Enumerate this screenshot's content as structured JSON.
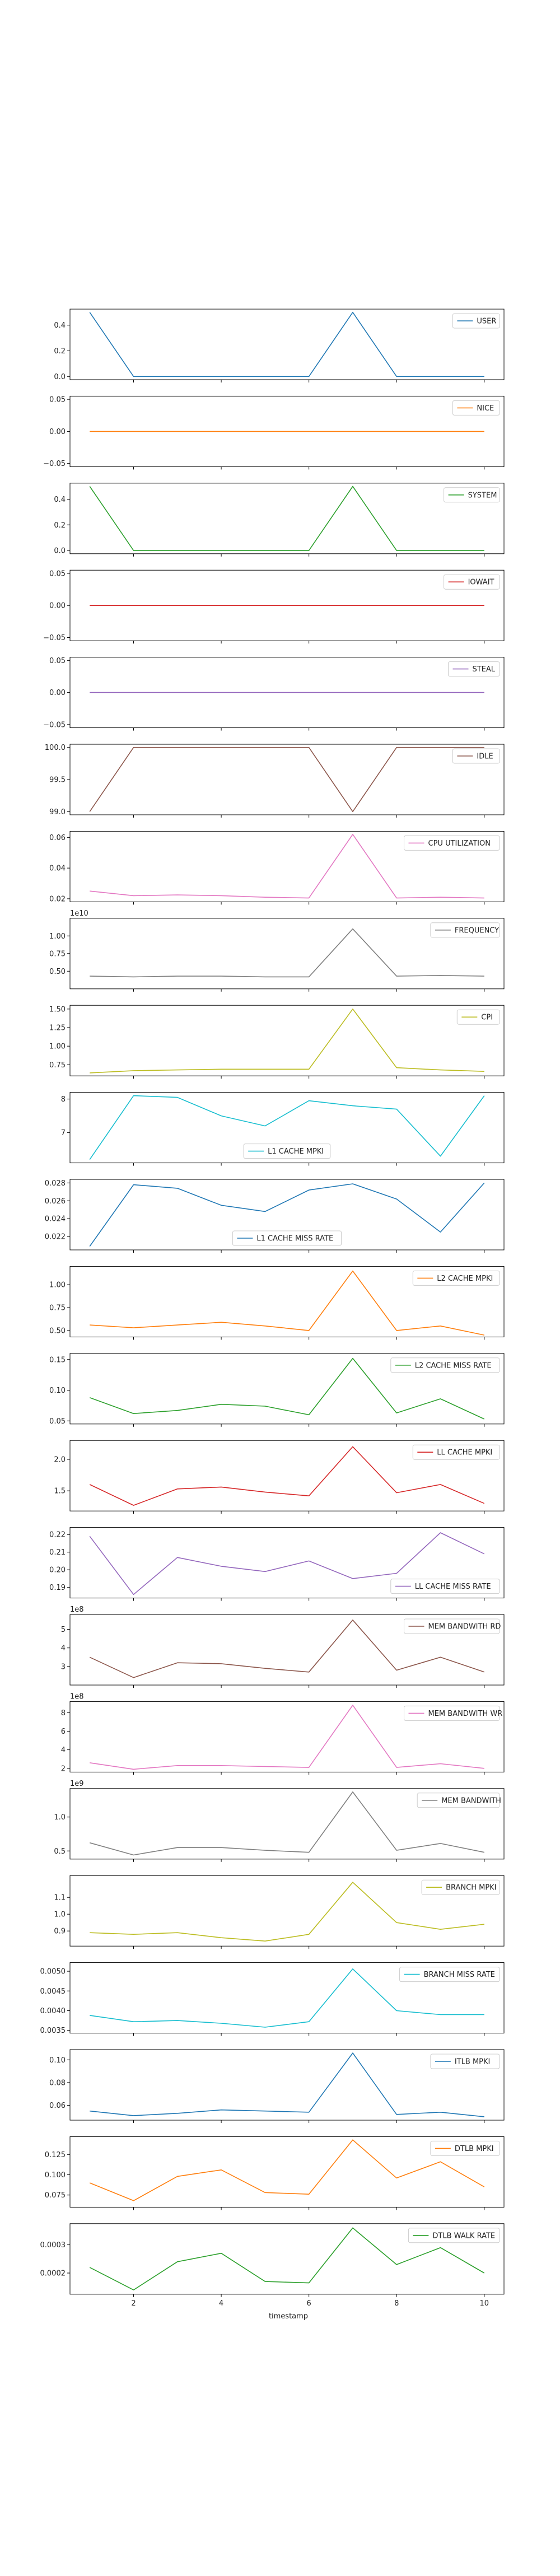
{
  "chart_data": {
    "type": "line",
    "layout": "stacked-subplots-shared-x",
    "xlabel": "timestamp",
    "x": [
      1,
      2,
      3,
      4,
      5,
      6,
      7,
      8,
      9,
      10
    ],
    "xlim": [
      0.55,
      10.45
    ],
    "xticks": [
      2,
      4,
      6,
      8,
      10
    ],
    "series": [
      {
        "name": "USER",
        "color": "#1f77b4",
        "legend": "upper right",
        "ylim": [
          -0.025,
          0.525
        ],
        "yticks": [
          0.0,
          0.2,
          0.4
        ],
        "tick_labels": [
          "0.0",
          "0.2",
          "0.4"
        ],
        "values": [
          0.5,
          0,
          0,
          0,
          0,
          0,
          0.5,
          0,
          0,
          0
        ]
      },
      {
        "name": "NICE",
        "color": "#ff7f0e",
        "legend": "upper right",
        "ylim": [
          -0.055,
          0.055
        ],
        "yticks": [
          -0.05,
          0.0,
          0.05
        ],
        "tick_labels": [
          "−0.05",
          "0.00",
          "0.05"
        ],
        "values": [
          0,
          0,
          0,
          0,
          0,
          0,
          0,
          0,
          0,
          0
        ]
      },
      {
        "name": "SYSTEM",
        "color": "#2ca02c",
        "legend": "upper right",
        "ylim": [
          -0.025,
          0.525
        ],
        "yticks": [
          0.0,
          0.2,
          0.4
        ],
        "tick_labels": [
          "0.0",
          "0.2",
          "0.4"
        ],
        "values": [
          0.5,
          0,
          0,
          0,
          0,
          0,
          0.5,
          0,
          0,
          0
        ]
      },
      {
        "name": "IOWAIT",
        "color": "#d62728",
        "legend": "upper right",
        "ylim": [
          -0.055,
          0.055
        ],
        "yticks": [
          -0.05,
          0.0,
          0.05
        ],
        "tick_labels": [
          "−0.05",
          "0.00",
          "0.05"
        ],
        "values": [
          0,
          0,
          0,
          0,
          0,
          0,
          0,
          0,
          0,
          0
        ]
      },
      {
        "name": "STEAL",
        "color": "#9467bd",
        "legend": "upper right",
        "ylim": [
          -0.055,
          0.055
        ],
        "yticks": [
          -0.05,
          0.0,
          0.05
        ],
        "tick_labels": [
          "−0.05",
          "0.00",
          "0.05"
        ],
        "values": [
          0,
          0,
          0,
          0,
          0,
          0,
          0,
          0,
          0,
          0
        ]
      },
      {
        "name": "IDLE",
        "color": "#8c564b",
        "legend": "upper right",
        "ylim": [
          98.95,
          100.05
        ],
        "yticks": [
          99.0,
          99.5,
          100.0
        ],
        "tick_labels": [
          "99.0",
          "99.5",
          "100.0"
        ],
        "values": [
          99.0,
          100,
          100,
          100,
          100,
          100,
          99.0,
          100,
          100,
          100
        ]
      },
      {
        "name": "CPU UTILIZATION",
        "color": "#e377c2",
        "legend": "upper right",
        "ylim": [
          0.018,
          0.064
        ],
        "yticks": [
          0.02,
          0.04,
          0.06
        ],
        "tick_labels": [
          "0.02",
          "0.04",
          "0.06"
        ],
        "values": [
          0.025,
          0.022,
          0.0225,
          0.022,
          0.021,
          0.0205,
          0.062,
          0.0205,
          0.021,
          0.0205
        ]
      },
      {
        "name": "FREQUENCY",
        "color": "#7f7f7f",
        "legend": "upper right",
        "offset_text": "1e10",
        "ylim": [
          0.25,
          1.25
        ],
        "yticks": [
          0.5,
          0.75,
          1.0
        ],
        "tick_labels": [
          "0.50",
          "0.75",
          "1.00"
        ],
        "values": [
          0.43,
          0.42,
          0.43,
          0.43,
          0.42,
          0.42,
          1.1,
          0.43,
          0.44,
          0.43
        ]
      },
      {
        "name": "CPI",
        "color": "#bcbd22",
        "legend": "upper right",
        "ylim": [
          0.6,
          1.55
        ],
        "yticks": [
          0.75,
          1.0,
          1.25,
          1.5
        ],
        "tick_labels": [
          "0.75",
          "1.00",
          "1.25",
          "1.50"
        ],
        "values": [
          0.64,
          0.67,
          0.68,
          0.69,
          0.69,
          0.69,
          1.5,
          0.71,
          0.68,
          0.66
        ]
      },
      {
        "name": "L1 CACHE MPKI",
        "color": "#17becf",
        "legend": "lower center",
        "ylim": [
          6.1,
          8.2
        ],
        "yticks": [
          7,
          8
        ],
        "tick_labels": [
          "7",
          "8"
        ],
        "values": [
          6.2,
          8.1,
          8.05,
          7.5,
          7.2,
          7.95,
          7.8,
          7.7,
          6.3,
          8.1
        ]
      },
      {
        "name": "L1 CACHE MISS RATE",
        "color": "#1f77b4",
        "legend": "lower center",
        "ylim": [
          0.0205,
          0.0284
        ],
        "yticks": [
          0.022,
          0.024,
          0.026,
          0.028
        ],
        "tick_labels": [
          "0.022",
          "0.024",
          "0.026",
          "0.028"
        ],
        "values": [
          0.0209,
          0.0278,
          0.0274,
          0.0255,
          0.0248,
          0.0272,
          0.0279,
          0.0262,
          0.0225,
          0.028
        ]
      },
      {
        "name": "L2 CACHE MPKI",
        "color": "#ff7f0e",
        "legend": "upper right",
        "ylim": [
          0.43,
          1.2
        ],
        "yticks": [
          0.5,
          0.75,
          1.0
        ],
        "tick_labels": [
          "0.50",
          "0.75",
          "1.00"
        ],
        "values": [
          0.56,
          0.53,
          0.56,
          0.59,
          0.55,
          0.5,
          1.15,
          0.5,
          0.55,
          0.45
        ]
      },
      {
        "name": "L2 CACHE MISS RATE",
        "color": "#2ca02c",
        "legend": "upper right",
        "ylim": [
          0.045,
          0.16
        ],
        "yticks": [
          0.05,
          0.1,
          0.15
        ],
        "tick_labels": [
          "0.05",
          "0.10",
          "0.15"
        ],
        "values": [
          0.088,
          0.062,
          0.067,
          0.077,
          0.074,
          0.06,
          0.152,
          0.063,
          0.086,
          0.053
        ]
      },
      {
        "name": "LL CACHE MPKI",
        "color": "#d62728",
        "legend": "upper right",
        "ylim": [
          1.18,
          2.3
        ],
        "yticks": [
          1.5,
          2.0
        ],
        "tick_labels": [
          "1.5",
          "2.0"
        ],
        "values": [
          1.6,
          1.27,
          1.53,
          1.56,
          1.48,
          1.42,
          2.2,
          1.47,
          1.6,
          1.3
        ]
      },
      {
        "name": "LL CACHE MISS RATE",
        "color": "#9467bd",
        "legend": "lower right",
        "ylim": [
          0.184,
          0.224
        ],
        "yticks": [
          0.19,
          0.2,
          0.21,
          0.22
        ],
        "tick_labels": [
          "0.19",
          "0.20",
          "0.21",
          "0.22"
        ],
        "values": [
          0.219,
          0.186,
          0.207,
          0.202,
          0.199,
          0.205,
          0.195,
          0.198,
          0.221,
          0.209
        ]
      },
      {
        "name": "MEM BANDWITH RD",
        "color": "#8c564b",
        "legend": "upper right",
        "offset_text": "1e8",
        "ylim": [
          2.0,
          5.8
        ],
        "yticks": [
          3,
          4,
          5
        ],
        "tick_labels": [
          "3",
          "4",
          "5"
        ],
        "values": [
          3.5,
          2.4,
          3.2,
          3.15,
          2.9,
          2.7,
          5.5,
          2.8,
          3.5,
          2.7
        ]
      },
      {
        "name": "MEM BANDWITH WR",
        "color": "#e377c2",
        "legend": "upper right",
        "offset_text": "1e8",
        "ylim": [
          1.6,
          9.2
        ],
        "yticks": [
          2,
          4,
          6,
          8
        ],
        "tick_labels": [
          "2",
          "4",
          "6",
          "8"
        ],
        "values": [
          2.6,
          1.9,
          2.3,
          2.3,
          2.2,
          2.1,
          8.8,
          2.1,
          2.5,
          2.0
        ]
      },
      {
        "name": "MEM BANDWITH",
        "color": "#7f7f7f",
        "legend": "upper right",
        "offset_text": "1e9",
        "ylim": [
          0.38,
          1.42
        ],
        "yticks": [
          0.5,
          1.0
        ],
        "tick_labels": [
          "0.5",
          "1.0"
        ],
        "values": [
          0.62,
          0.44,
          0.55,
          0.55,
          0.51,
          0.48,
          1.37,
          0.51,
          0.61,
          0.48
        ]
      },
      {
        "name": "BRANCH MPKI",
        "color": "#bcbd22",
        "legend": "upper right",
        "ylim": [
          0.81,
          1.23
        ],
        "yticks": [
          0.9,
          1.0,
          1.1
        ],
        "tick_labels": [
          "0.9",
          "1.0",
          "1.1"
        ],
        "values": [
          0.89,
          0.88,
          0.89,
          0.86,
          0.84,
          0.88,
          1.19,
          0.95,
          0.91,
          0.94
        ]
      },
      {
        "name": "BRANCH MISS RATE",
        "color": "#17becf",
        "legend": "upper right",
        "ylim": [
          0.00343,
          0.00522
        ],
        "yticks": [
          0.0035,
          0.004,
          0.0045,
          0.005
        ],
        "tick_labels": [
          "0.0035",
          "0.0040",
          "0.0045",
          "0.0050"
        ],
        "values": [
          0.00388,
          0.00372,
          0.00375,
          0.00368,
          0.00358,
          0.00372,
          0.00506,
          0.004,
          0.0039,
          0.0039
        ]
      },
      {
        "name": "ITLB MPKI",
        "color": "#1f77b4",
        "legend": "upper right",
        "ylim": [
          0.047,
          0.109
        ],
        "yticks": [
          0.06,
          0.08,
          0.1
        ],
        "tick_labels": [
          "0.06",
          "0.08",
          "0.10"
        ],
        "values": [
          0.055,
          0.051,
          0.053,
          0.056,
          0.055,
          0.054,
          0.106,
          0.052,
          0.054,
          0.05
        ]
      },
      {
        "name": "DTLB MPKI",
        "color": "#ff7f0e",
        "legend": "upper right",
        "ylim": [
          0.06,
          0.147
        ],
        "yticks": [
          0.075,
          0.1,
          0.125
        ],
        "tick_labels": [
          "0.075",
          "0.100",
          "0.125"
        ],
        "values": [
          0.09,
          0.068,
          0.098,
          0.106,
          0.078,
          0.076,
          0.143,
          0.096,
          0.116,
          0.085
        ]
      },
      {
        "name": "DTLB WALK RATE",
        "color": "#2ca02c",
        "legend": "upper right",
        "ylim": [
          0.000125,
          0.000375
        ],
        "yticks": [
          0.0002,
          0.0003
        ],
        "tick_labels": [
          "0.0002",
          "0.0003"
        ],
        "values": [
          0.00022,
          0.00014,
          0.00024,
          0.00027,
          0.00017,
          0.000165,
          0.00036,
          0.00023,
          0.00029,
          0.0002
        ]
      }
    ]
  }
}
